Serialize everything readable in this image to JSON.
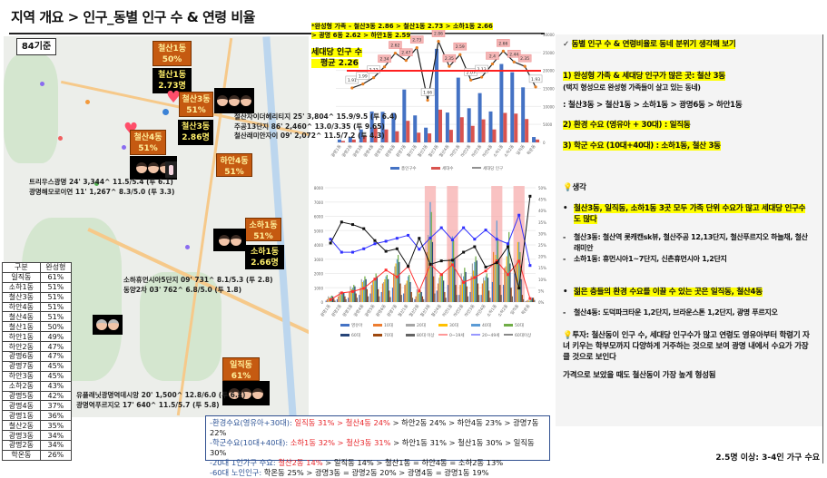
{
  "title": "지역 개요 > 인구_동별 인구 수 & 연령 비율",
  "map": {
    "basis_label": "84기준",
    "labels": [
      {
        "dong": "철산1동",
        "value": "50%"
      },
      {
        "dong": "철산1동",
        "value": "2.73명"
      },
      {
        "dong": "철산3동",
        "value": "51%"
      },
      {
        "dong": "철산3동",
        "value": "2.86명"
      },
      {
        "dong": "철산4동",
        "value": "51%"
      },
      {
        "dong": "하안4동",
        "value": "51%"
      },
      {
        "dong": "소하1동",
        "value": "51%"
      },
      {
        "dong": "소하1동",
        "value": "2.66명"
      },
      {
        "dong": "일직동",
        "value": "61%"
      }
    ],
    "complexes": [
      "철산자이더헤리티지 25' 3,804^ 15.9/9.5 (투 6.4)",
      "주공13단지 86' 2,460^ 13.0/3.35 (투 9.65)",
      "철산래미안자이 09' 2,072^ 11.5/7.2 (투 4.3)",
      "트리우스광명 24' 3,344^ 11.5/5.4 (투 6.1)",
      "광명해모로이연 11' 1,267^ 8.3/5.0 (투 3.3)",
      "소하휴먼시아5단지 09' 731^ 8.1/5.3 (투 2.8)",
      "동양2차 03' 762^ 6.8/5.0 (투 1.8)",
      "유플래닛광명역데시앙 20' 1,500^ 12.8/6.0 (투 6.8)",
      "광명역푸르지오 17' 640^ 11.5/5.7 (투 5.8)"
    ]
  },
  "table": {
    "headers": [
      "구분",
      "완성형"
    ],
    "rows": [
      [
        "일직동",
        "61%"
      ],
      [
        "소하1동",
        "51%"
      ],
      [
        "철산3동",
        "51%"
      ],
      [
        "하안4동",
        "51%"
      ],
      [
        "철산4동",
        "51%"
      ],
      [
        "철산1동",
        "50%"
      ],
      [
        "하안1동",
        "49%"
      ],
      [
        "하안2동",
        "47%"
      ],
      [
        "광명6동",
        "47%"
      ],
      [
        "광명7동",
        "45%"
      ],
      [
        "하안3동",
        "45%"
      ],
      [
        "소하2동",
        "43%"
      ],
      [
        "광명5동",
        "42%"
      ],
      [
        "광명4동",
        "37%"
      ],
      [
        "광명1동",
        "36%"
      ],
      [
        "철산2동",
        "35%"
      ],
      [
        "광명3동",
        "34%"
      ],
      [
        "광명2동",
        "34%"
      ],
      [
        "학온동",
        "26%"
      ]
    ]
  },
  "chart_annotation": {
    "line1": "*완성형 가족 – 철산3동 2.86 > 철산1동 2.73 > 소하1동 2.66",
    "line2": "> 광명 6동 2.62 > 하안1동 2.59",
    "avg_line1": "세대당 인구 수",
    "avg_line2": "평균 2.26"
  },
  "chart_data": [
    {
      "type": "bar",
      "categories": [
        "광명1동",
        "광명2동",
        "광명3동",
        "광명4동",
        "광명5동",
        "광명6동",
        "광명7동",
        "철산1동",
        "철산2동",
        "철산3동",
        "철산4동",
        "하안1동",
        "하안2동",
        "하안3동",
        "하안4동",
        "소하1동",
        "소하2동",
        "일직동",
        "학온동"
      ],
      "series": [
        {
          "name": "총인구수",
          "type": "bar",
          "color": "#4472c4",
          "values": [
            800,
            1500,
            3600,
            8600,
            8500,
            8200,
            14700,
            7500,
            4100,
            26000,
            8300,
            18000,
            9500,
            13700,
            8600,
            21800,
            19500,
            15300,
            1500
          ]
        },
        {
          "name": "세대수",
          "type": "bar",
          "color": "#d9534f",
          "values": [
            400,
            800,
            1800,
            4100,
            3600,
            3100,
            6000,
            2700,
            2500,
            9100,
            3500,
            7000,
            4600,
            6400,
            3600,
            8200,
            8000,
            6500,
            800
          ]
        },
        {
          "name": "세대당 인구",
          "type": "line",
          "color": "#222222",
          "values": [
            null,
            1.91,
            1.99,
            2.12,
            2.34,
            2.62,
            2.47,
            2.73,
            1.66,
            2.86,
            2.35,
            2.59,
            2.07,
            2.13,
            2.4,
            2.66,
            2.44,
            2.35,
            1.93
          ]
        }
      ],
      "reference_line": {
        "value": 2.26,
        "color": "#ff2020"
      },
      "ylim_left": [
        0,
        30000
      ],
      "ylim_right": [
        0.8,
        3.0
      ],
      "legend": "bottom"
    },
    {
      "type": "bar",
      "categories": [
        "광명1동",
        "광명2동",
        "광명3동",
        "광명4동",
        "광명5동",
        "광명6동",
        "광명7동",
        "철산1동",
        "철산2동",
        "철산3동",
        "철산4동",
        "하안1동",
        "하안2동",
        "하안3동",
        "하안4동",
        "소하1동",
        "소하2동",
        "일직동",
        "학온동"
      ],
      "highlighted": [
        "철산3동",
        "하안1동",
        "소하1동",
        "일직동"
      ],
      "series": [
        {
          "name": "영유아",
          "color": "#4472c4",
          "values": [
            100,
            200,
            300,
            500,
            600,
            700,
            1000,
            600,
            200,
            1800,
            800,
            1200,
            500,
            700,
            500,
            1400,
            1200,
            2000,
            50
          ]
        },
        {
          "name": "10대",
          "color": "#ed7d31",
          "values": [
            200,
            400,
            700,
            1000,
            1200,
            1300,
            2000,
            1200,
            400,
            3500,
            1300,
            3000,
            1200,
            1800,
            1300,
            3500,
            2400,
            2600,
            100
          ]
        },
        {
          "name": "20대",
          "color": "#a5a5a5",
          "values": [
            400,
            700,
            1100,
            1600,
            1500,
            1400,
            2500,
            1300,
            900,
            4700,
            1700,
            3000,
            2000,
            2700,
            1700,
            2800,
            2500,
            2900,
            150
          ]
        },
        {
          "name": "30대",
          "color": "#ffc000",
          "values": [
            300,
            500,
            900,
            1400,
            1500,
            1600,
            2700,
            1500,
            700,
            4500,
            1900,
            2800,
            1400,
            2200,
            1500,
            3300,
            3200,
            4200,
            100
          ]
        },
        {
          "name": "40대",
          "color": "#5b9bd5",
          "values": [
            350,
            550,
            1000,
            1500,
            1700,
            1800,
            3000,
            1800,
            600,
            7000,
            2000,
            4600,
            1800,
            2800,
            1800,
            5700,
            4000,
            4200,
            100
          ]
        },
        {
          "name": "50대",
          "color": "#70ad47",
          "values": [
            450,
            700,
            1200,
            1800,
            2000,
            1900,
            3300,
            1900,
            800,
            6300,
            2000,
            4300,
            2400,
            3200,
            2000,
            4300,
            4900,
            3500,
            200
          ]
        },
        {
          "name": "60대",
          "color": "#264478",
          "values": [
            400,
            650,
            1100,
            1600,
            1800,
            1600,
            2800,
            1400,
            700,
            4200,
            1500,
            3000,
            2100,
            2900,
            1700,
            3000,
            2700,
            1600,
            300
          ]
        },
        {
          "name": "70대",
          "color": "#9e480e",
          "values": [
            250,
            400,
            600,
            900,
            900,
            800,
            1300,
            700,
            400,
            1800,
            700,
            1200,
            1100,
            1300,
            800,
            1200,
            1000,
            500,
            300
          ]
        },
        {
          "name": "80대 이상",
          "color": "#636363",
          "values": [
            100,
            200,
            300,
            400,
            400,
            350,
            500,
            300,
            200,
            600,
            300,
            500,
            400,
            500,
            300,
            500,
            400,
            200,
            150
          ]
        },
        {
          "name": "0~19세",
          "type": "line",
          "axis": "right",
          "color": "#ff3030",
          "values": [
            1,
            4,
            4.6,
            6,
            10,
            14,
            11,
            15.6,
            4.8,
            16.5,
            12,
            16.3,
            8.6,
            10.7,
            13.6,
            18,
            12,
            17.9,
            1.5
          ]
        },
        {
          "name": "20~49세",
          "type": "line",
          "axis": "right",
          "color": "#3030ff",
          "values": [
            27.5,
            21.8,
            21.8,
            23.3,
            25.5,
            26.6,
            27.9,
            29.2,
            23.1,
            28,
            32.5,
            27.2,
            32.5,
            27.5,
            31.5,
            27.5,
            25.5,
            38,
            16
          ]
        },
        {
          "name": "60대이상",
          "type": "line",
          "axis": "right",
          "color": "#111111",
          "values": [
            25.8,
            35,
            33.9,
            32.1,
            26.9,
            22.2,
            23.3,
            15.6,
            27.9,
            16.5,
            18,
            18.3,
            21.8,
            24.2,
            15.3,
            17.2,
            24.2,
            6.1,
            46.3
          ]
        }
      ],
      "ylim_left": [
        0,
        8000
      ],
      "ylim_right": [
        0,
        50
      ],
      "legend": "bottom"
    }
  ],
  "panel": {
    "heading": "동별 인구 수 & 연령비율로 동네 분위기 생각해 보기",
    "p1": "1) 완성형 가족 & 세대당 인구가 많은 곳: 철산 3동",
    "p1_sub": "(택지 형성으로 완성형 가족들이 살고 있는 동네)",
    "p1_rank": ":  철산3동 > 철산1동 > 소하1동 > 광명6동 > 하안1동",
    "p2": "2) 환경 수요 (영유아 + 30대) : 일직동",
    "p3": "3) 학군 수요 (10대+40대) : 소하1동, 철산 3동",
    "think": "생각",
    "b1": "철산3동, 일직동, 소하1동 3곳 모두 가족 단위 수요가 많고 세대당 인구수도 많다",
    "d1": "철산3동: 철산역 롯캐캔sk뷰, 철산주공 12,13단지, 철산푸르지오 하늘채, 철산래미안",
    "d2": "소하1동: 휴먼시아1~7단지, 신촌휴먼시아 1,2단지",
    "b2": "젊은 층들의 환경 수요를 이끌 수 있는 곳은 일직동, 철산4동",
    "d3": "철산4동: 도덕파크타운 1,2단지, 브라운스톤 1,2단지, 광명 푸르지오",
    "invest": "투자: 철산동이 인구 수, 세대당 인구수가 많고 연령도 영유아부터 학령기 자녀 키우는 학부모까지 다양하게 거주하는 것으로 보여 광명 내에서 수요가 가장 클 것으로 보인다",
    "price": "가격으로 보았을 때도 철산동이 가장 높게 형성됨"
  },
  "summary": {
    "r1_label": "-환경수요(영유아+30대): ",
    "r1_hi": "일직동 31% > 철산4동 24%",
    "r1_rest": " > 하안2동 24% > 하안4동 23% > 광명7동 22%",
    "r2_label": "-학군수요(10대+40대): ",
    "r2_hi": "소하1동 32% > 철산3동 31%",
    "r2_rest": " > 하안1동 31% > 철산1동 30% > 일직동 30%",
    "r3_label": "-20대 1인가구 수요: ",
    "r3_hi": "철산2동 14%",
    "r3_rest": " > 일직동 14% > 철산1동 = 하안4동 = 소하2동 13%",
    "r4_label": "-60대 노인인구: ",
    "r4_rest": "학온동 25% > 광명3동 = 광명2동 20% > 광명4동 = 광명1동 19%"
  },
  "footer": "2.5명 이상: 3-4인 가구 수요"
}
